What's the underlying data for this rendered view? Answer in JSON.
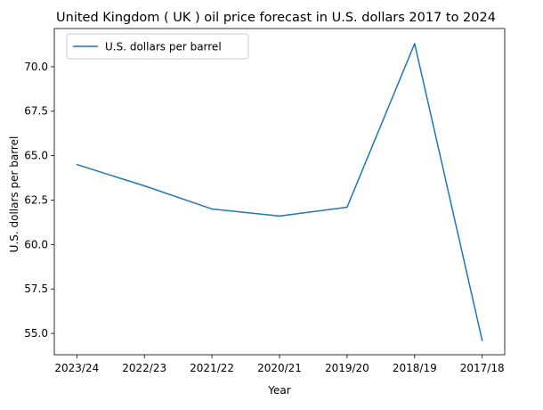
{
  "chart_data": {
    "type": "line",
    "title": "United Kingdom ( UK ) oil price forecast in U.S. dollars 2017 to 2024",
    "xlabel": "Year",
    "ylabel": "U.S. dollars per barrel",
    "categories": [
      "2023/24",
      "2022/23",
      "2021/22",
      "2020/21",
      "2019/20",
      "2018/19",
      "2017/18"
    ],
    "series": [
      {
        "name": "U.S. dollars per barrel",
        "values": [
          64.5,
          63.3,
          62.0,
          61.6,
          62.1,
          71.3,
          54.6
        ],
        "color": "#1f77b4"
      }
    ],
    "yticks": [
      "55.0",
      "57.5",
      "60.0",
      "62.5",
      "65.0",
      "67.5",
      "70.0"
    ],
    "ylim": [
      53.8,
      72.15
    ],
    "grid": false,
    "legend_position": "upper-left"
  }
}
